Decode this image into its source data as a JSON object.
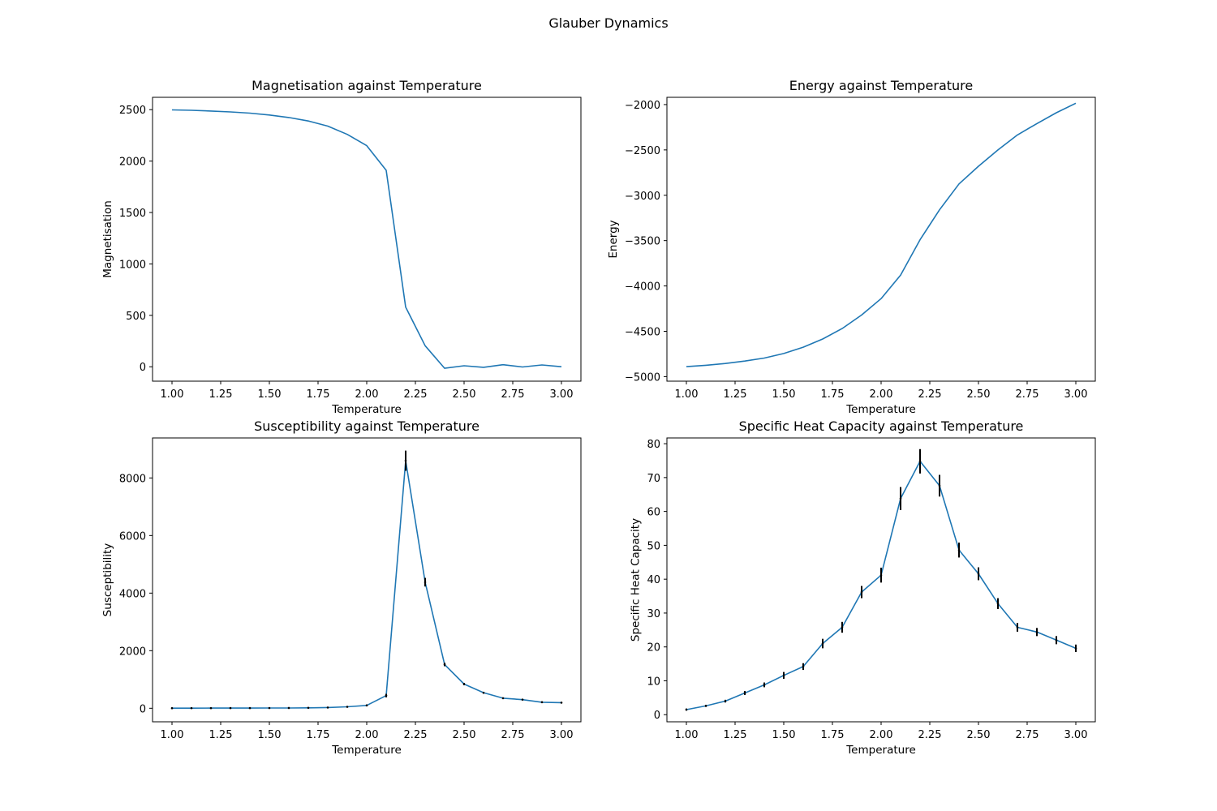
{
  "figure": {
    "title": "Glauber Dynamics"
  },
  "chart_data": [
    {
      "type": "line",
      "title": "Magnetisation against Temperature",
      "xlabel": "Temperature",
      "ylabel": "Magnetisation",
      "xlim": [
        0.9,
        3.1
      ],
      "ylim": [
        -140,
        2620
      ],
      "xticks": [
        "1.00",
        "1.25",
        "1.50",
        "1.75",
        "2.00",
        "2.25",
        "2.50",
        "2.75",
        "3.00"
      ],
      "yticks": [
        "0",
        "500",
        "1000",
        "1500",
        "2000",
        "2500"
      ],
      "line_color": "#1f77b4",
      "grid": false,
      "x": [
        1.0,
        1.1,
        1.2,
        1.3,
        1.4,
        1.5,
        1.6,
        1.7,
        1.8,
        1.9,
        2.0,
        2.1,
        2.2,
        2.3,
        2.4,
        2.5,
        2.6,
        2.7,
        2.8,
        2.9,
        3.0
      ],
      "y": [
        2498,
        2494,
        2487,
        2478,
        2466,
        2448,
        2424,
        2390,
        2340,
        2260,
        2150,
        1910,
        580,
        205,
        -15,
        10,
        -5,
        20,
        -2,
        18,
        0
      ]
    },
    {
      "type": "line",
      "title": "Energy against Temperature",
      "xlabel": "Temperature",
      "ylabel": "Energy",
      "xlim": [
        0.9,
        3.1
      ],
      "ylim": [
        -5050,
        -1920
      ],
      "xticks": [
        "1.00",
        "1.25",
        "1.50",
        "1.75",
        "2.00",
        "2.25",
        "2.50",
        "2.75",
        "3.00"
      ],
      "yticks": [
        "−5000",
        "−4500",
        "−4000",
        "−3500",
        "−3000",
        "−2500",
        "−2000"
      ],
      "line_color": "#1f77b4",
      "grid": false,
      "x": [
        1.0,
        1.1,
        1.2,
        1.3,
        1.4,
        1.5,
        1.6,
        1.7,
        1.8,
        1.9,
        2.0,
        2.1,
        2.2,
        2.3,
        2.4,
        2.5,
        2.6,
        2.7,
        2.8,
        2.9,
        3.0
      ],
      "y": [
        -4890,
        -4875,
        -4855,
        -4828,
        -4795,
        -4745,
        -4675,
        -4585,
        -4470,
        -4320,
        -4140,
        -3880,
        -3490,
        -3160,
        -2875,
        -2680,
        -2500,
        -2335,
        -2210,
        -2090,
        -1985
      ]
    },
    {
      "type": "line",
      "title": "Susceptibility against Temperature",
      "xlabel": "Temperature",
      "ylabel": "Susceptibility",
      "xlim": [
        0.9,
        3.1
      ],
      "ylim": [
        -470,
        9390
      ],
      "xticks": [
        "1.00",
        "1.25",
        "1.50",
        "1.75",
        "2.00",
        "2.25",
        "2.50",
        "2.75",
        "3.00"
      ],
      "yticks": [
        "0",
        "2000",
        "4000",
        "6000",
        "8000"
      ],
      "line_color": "#1f77b4",
      "errorbar_color": "#000000",
      "grid": false,
      "x": [
        1.0,
        1.1,
        1.2,
        1.3,
        1.4,
        1.5,
        1.6,
        1.7,
        1.8,
        1.9,
        2.0,
        2.1,
        2.2,
        2.3,
        2.4,
        2.5,
        2.6,
        2.7,
        2.8,
        2.9,
        3.0
      ],
      "y": [
        3,
        4,
        5,
        6,
        7,
        8,
        10,
        15,
        25,
        50,
        100,
        440,
        8600,
        4380,
        1520,
        840,
        540,
        350,
        300,
        210,
        195
      ],
      "yerr": [
        10,
        10,
        10,
        10,
        10,
        10,
        10,
        10,
        15,
        20,
        30,
        60,
        350,
        150,
        60,
        40,
        30,
        20,
        20,
        15,
        15
      ]
    },
    {
      "type": "line",
      "title": "Specific Heat Capacity against Temperature",
      "xlabel": "Temperature",
      "ylabel": "Specific Heat Capacity",
      "xlim": [
        0.9,
        3.1
      ],
      "ylim": [
        -2.1,
        81.7
      ],
      "xticks": [
        "1.00",
        "1.25",
        "1.50",
        "1.75",
        "2.00",
        "2.25",
        "2.50",
        "2.75",
        "3.00"
      ],
      "yticks": [
        "0",
        "10",
        "20",
        "30",
        "40",
        "50",
        "60",
        "70",
        "80"
      ],
      "line_color": "#1f77b4",
      "errorbar_color": "#000000",
      "grid": false,
      "x": [
        1.0,
        1.1,
        1.2,
        1.3,
        1.4,
        1.5,
        1.6,
        1.7,
        1.8,
        1.9,
        2.0,
        2.1,
        2.2,
        2.3,
        2.4,
        2.5,
        2.6,
        2.7,
        2.8,
        2.9,
        3.0
      ],
      "y": [
        1.5,
        2.6,
        4.0,
        6.4,
        8.8,
        11.6,
        14.2,
        21.0,
        25.8,
        36.2,
        41.2,
        63.8,
        74.8,
        67.6,
        48.6,
        41.6,
        32.8,
        25.8,
        24.4,
        22.0,
        19.6
      ],
      "yerr": [
        0.3,
        0.3,
        0.4,
        0.6,
        0.7,
        1.0,
        1.0,
        1.4,
        1.6,
        1.8,
        2.2,
        3.4,
        3.6,
        3.2,
        2.2,
        1.9,
        1.6,
        1.3,
        1.2,
        1.2,
        1.1
      ]
    }
  ]
}
